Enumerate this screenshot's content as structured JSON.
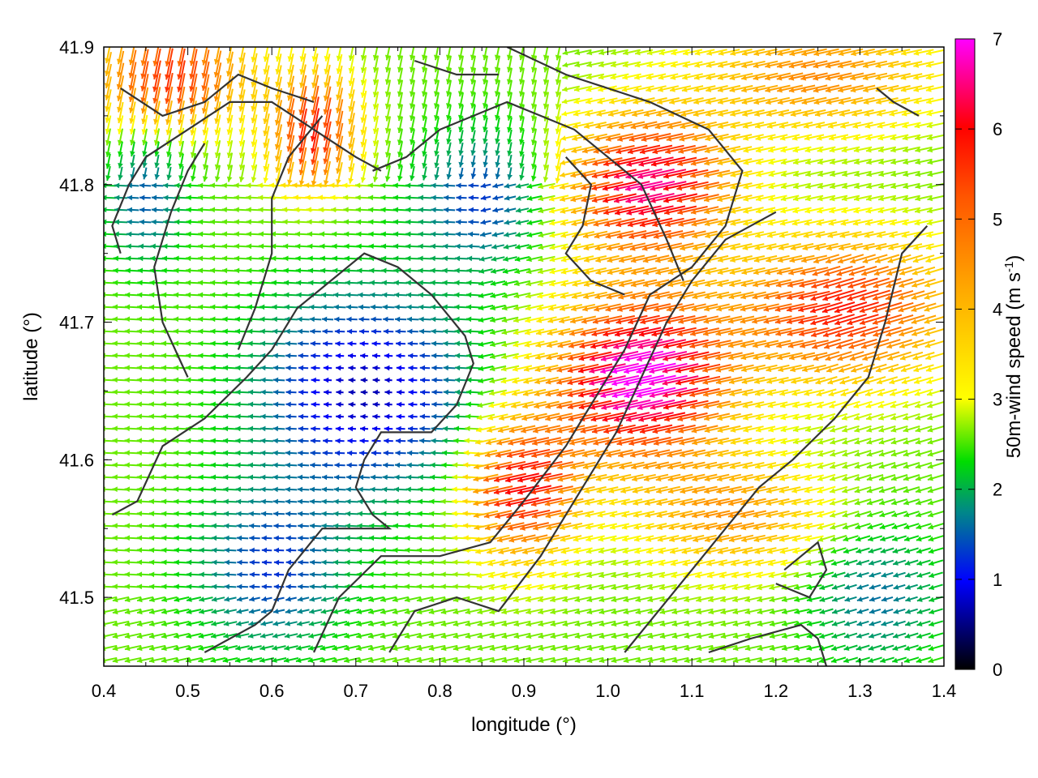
{
  "chart_data": {
    "type": "vector-field",
    "xlabel": "longitude (°)",
    "ylabel": "latitude (°)",
    "colorbar_label": "50m-wind speed (m s",
    "colorbar_label_sup": "-1",
    "colorbar_label_end": ")",
    "xlim": [
      0.4,
      1.4
    ],
    "ylim": [
      41.45,
      41.9
    ],
    "x_ticks": [
      "0.4",
      "0.5",
      "0.6",
      "0.7",
      "0.8",
      "0.9",
      "1.0",
      "1.1",
      "1.2",
      "1.3",
      "1.4"
    ],
    "y_ticks": [
      "41.5",
      "41.6",
      "41.7",
      "41.8",
      "41.9"
    ],
    "colorbar_ticks": [
      "0",
      "1",
      "2",
      "3",
      "4",
      "5",
      "6",
      "7"
    ],
    "colorbar_range": [
      0,
      7
    ],
    "grid": false,
    "contours": [
      [
        [
          0.41,
          41.56
        ],
        [
          0.44,
          41.57
        ],
        [
          0.47,
          41.61
        ],
        [
          0.52,
          41.63
        ],
        [
          0.57,
          41.66
        ],
        [
          0.6,
          41.68
        ],
        [
          0.63,
          41.71
        ],
        [
          0.67,
          41.73
        ],
        [
          0.71,
          41.75
        ],
        [
          0.75,
          41.74
        ],
        [
          0.79,
          41.72
        ],
        [
          0.83,
          41.69
        ],
        [
          0.84,
          41.67
        ],
        [
          0.82,
          41.64
        ],
        [
          0.79,
          41.62
        ],
        [
          0.73,
          41.62
        ],
        [
          0.71,
          41.6
        ],
        [
          0.7,
          41.58
        ],
        [
          0.72,
          41.56
        ],
        [
          0.74,
          41.55
        ],
        [
          0.69,
          41.55
        ],
        [
          0.66,
          41.55
        ],
        [
          0.62,
          41.52
        ],
        [
          0.6,
          41.49
        ],
        [
          0.58,
          41.48
        ],
        [
          0.52,
          41.46
        ]
      ],
      [
        [
          0.65,
          41.46
        ],
        [
          0.68,
          41.5
        ],
        [
          0.73,
          41.53
        ],
        [
          0.8,
          41.53
        ],
        [
          0.86,
          41.54
        ],
        [
          0.9,
          41.57
        ],
        [
          0.95,
          41.61
        ],
        [
          0.99,
          41.65
        ],
        [
          1.02,
          41.68
        ],
        [
          1.05,
          41.72
        ],
        [
          1.1,
          41.74
        ],
        [
          1.14,
          41.77
        ],
        [
          1.16,
          41.81
        ],
        [
          1.12,
          41.84
        ],
        [
          1.05,
          41.86
        ],
        [
          0.95,
          41.88
        ],
        [
          0.88,
          41.9
        ]
      ],
      [
        [
          0.74,
          41.46
        ],
        [
          0.77,
          41.49
        ],
        [
          0.82,
          41.5
        ],
        [
          0.87,
          41.49
        ],
        [
          0.92,
          41.53
        ],
        [
          0.97,
          41.58
        ],
        [
          1.01,
          41.62
        ],
        [
          1.04,
          41.66
        ],
        [
          1.07,
          41.7
        ],
        [
          1.1,
          41.73
        ],
        [
          1.14,
          41.76
        ],
        [
          1.2,
          41.78
        ]
      ],
      [
        [
          1.02,
          41.46
        ],
        [
          1.06,
          41.49
        ],
        [
          1.1,
          41.52
        ],
        [
          1.14,
          41.55
        ],
        [
          1.18,
          41.58
        ],
        [
          1.22,
          41.6
        ],
        [
          1.27,
          41.63
        ],
        [
          1.31,
          41.66
        ],
        [
          1.33,
          41.7
        ],
        [
          1.35,
          41.75
        ],
        [
          1.38,
          41.77
        ]
      ],
      [
        [
          1.12,
          41.46
        ],
        [
          1.17,
          41.47
        ],
        [
          1.23,
          41.48
        ],
        [
          1.25,
          41.47
        ],
        [
          1.26,
          41.45
        ]
      ],
      [
        [
          1.2,
          41.51
        ],
        [
          1.24,
          41.5
        ],
        [
          1.26,
          41.52
        ],
        [
          1.25,
          41.54
        ],
        [
          1.21,
          41.52
        ]
      ],
      [
        [
          0.42,
          41.75
        ],
        [
          0.41,
          41.77
        ],
        [
          0.43,
          41.8
        ],
        [
          0.45,
          41.82
        ],
        [
          0.5,
          41.84
        ],
        [
          0.55,
          41.86
        ],
        [
          0.6,
          41.86
        ],
        [
          0.65,
          41.84
        ],
        [
          0.7,
          41.82
        ],
        [
          0.73,
          41.81
        ]
      ],
      [
        [
          0.5,
          41.66
        ],
        [
          0.47,
          41.7
        ],
        [
          0.46,
          41.74
        ],
        [
          0.48,
          41.78
        ],
        [
          0.5,
          41.81
        ],
        [
          0.52,
          41.83
        ]
      ],
      [
        [
          0.56,
          41.68
        ],
        [
          0.58,
          41.71
        ],
        [
          0.6,
          41.75
        ],
        [
          0.6,
          41.79
        ],
        [
          0.62,
          41.82
        ],
        [
          0.66,
          41.85
        ]
      ],
      [
        [
          0.42,
          41.87
        ],
        [
          0.47,
          41.85
        ],
        [
          0.52,
          41.86
        ],
        [
          0.56,
          41.88
        ],
        [
          0.6,
          41.87
        ],
        [
          0.65,
          41.86
        ]
      ],
      [
        [
          0.72,
          41.81
        ],
        [
          0.76,
          41.82
        ],
        [
          0.8,
          41.84
        ],
        [
          0.84,
          41.85
        ],
        [
          0.88,
          41.86
        ],
        [
          0.92,
          41.85
        ],
        [
          0.96,
          41.84
        ],
        [
          1.0,
          41.82
        ],
        [
          1.04,
          41.8
        ],
        [
          1.07,
          41.76
        ],
        [
          1.09,
          41.73
        ]
      ],
      [
        [
          0.95,
          41.82
        ],
        [
          0.98,
          41.8
        ],
        [
          0.97,
          41.77
        ],
        [
          0.95,
          41.75
        ],
        [
          0.98,
          41.73
        ],
        [
          1.02,
          41.72
        ]
      ],
      [
        [
          1.32,
          41.87
        ],
        [
          1.34,
          41.86
        ],
        [
          1.37,
          41.85
        ]
      ],
      [
        [
          0.77,
          41.89
        ],
        [
          0.82,
          41.88
        ],
        [
          0.87,
          41.88
        ]
      ]
    ]
  }
}
